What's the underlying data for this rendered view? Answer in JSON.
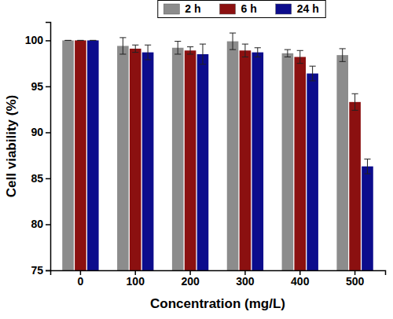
{
  "chart_data": {
    "type": "bar",
    "x_label": "Concentration (mg/L)",
    "y_label": "Cell viability (%)",
    "categories": [
      "0",
      "100",
      "200",
      "300",
      "400",
      "500"
    ],
    "series": [
      {
        "name": "2 h",
        "color": "#8c8c8c",
        "values": [
          100,
          99.4,
          99.2,
          99.9,
          98.6,
          98.4
        ],
        "errors": [
          0,
          0.9,
          0.7,
          0.9,
          0.4,
          0.7
        ]
      },
      {
        "name": "6 h",
        "color": "#8b1010",
        "values": [
          100,
          99.1,
          98.9,
          98.9,
          98.2,
          93.3
        ],
        "errors": [
          0,
          0.4,
          0.4,
          0.7,
          0.7,
          0.9
        ]
      },
      {
        "name": "24 h",
        "color": "#0c0c8c",
        "values": [
          100,
          98.7,
          98.5,
          98.7,
          96.4,
          86.3
        ],
        "errors": [
          0,
          0.8,
          1.1,
          0.5,
          0.8,
          0.8
        ]
      }
    ],
    "ylim": [
      75,
      102
    ],
    "yticks": [
      75,
      80,
      85,
      90,
      95,
      100
    ],
    "legend": "top",
    "grid": false
  }
}
